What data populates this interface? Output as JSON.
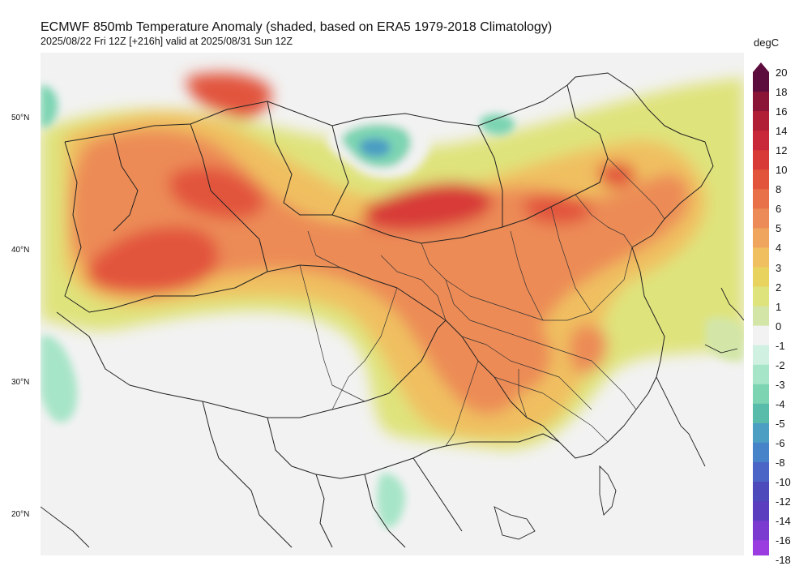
{
  "title": "ECMWF 850mb Temperature Anomaly (shaded, based on ERA5 1979-2018 Climatology)",
  "subtitle": "2025/08/22 Fri 12Z [+216h] valid at 2025/08/31 Sun 12Z",
  "latitude_labels": [
    "50°N",
    "40°N",
    "30°N",
    "20°N"
  ],
  "colorbar": {
    "unit": "degC",
    "ticks": [
      "20",
      "18",
      "16",
      "14",
      "12",
      "10",
      "8",
      "6",
      "5",
      "4",
      "3",
      "2",
      "1",
      "0",
      "-1",
      "-2",
      "-3",
      "-4",
      "-5",
      "-6",
      "-8",
      "-10",
      "-12",
      "-14",
      "-16",
      "-18"
    ],
    "colors": [
      "#5d0d3d",
      "#8a1537",
      "#b11f36",
      "#c8283a",
      "#d83a38",
      "#e2553c",
      "#e8714a",
      "#ec8b57",
      "#efa55e",
      "#f0bf60",
      "#e9d35f",
      "#dfe37c",
      "#d3e6a8",
      "#f2f2f2",
      "#d0f1e2",
      "#a7e5c8",
      "#7cd4b2",
      "#59bcab",
      "#4c9ec2",
      "#4783c8",
      "#4a65c5",
      "#4d4bbc",
      "#5b3dc0",
      "#7b3ad0",
      "#9b3ce0",
      "#b846ee"
    ]
  }
}
